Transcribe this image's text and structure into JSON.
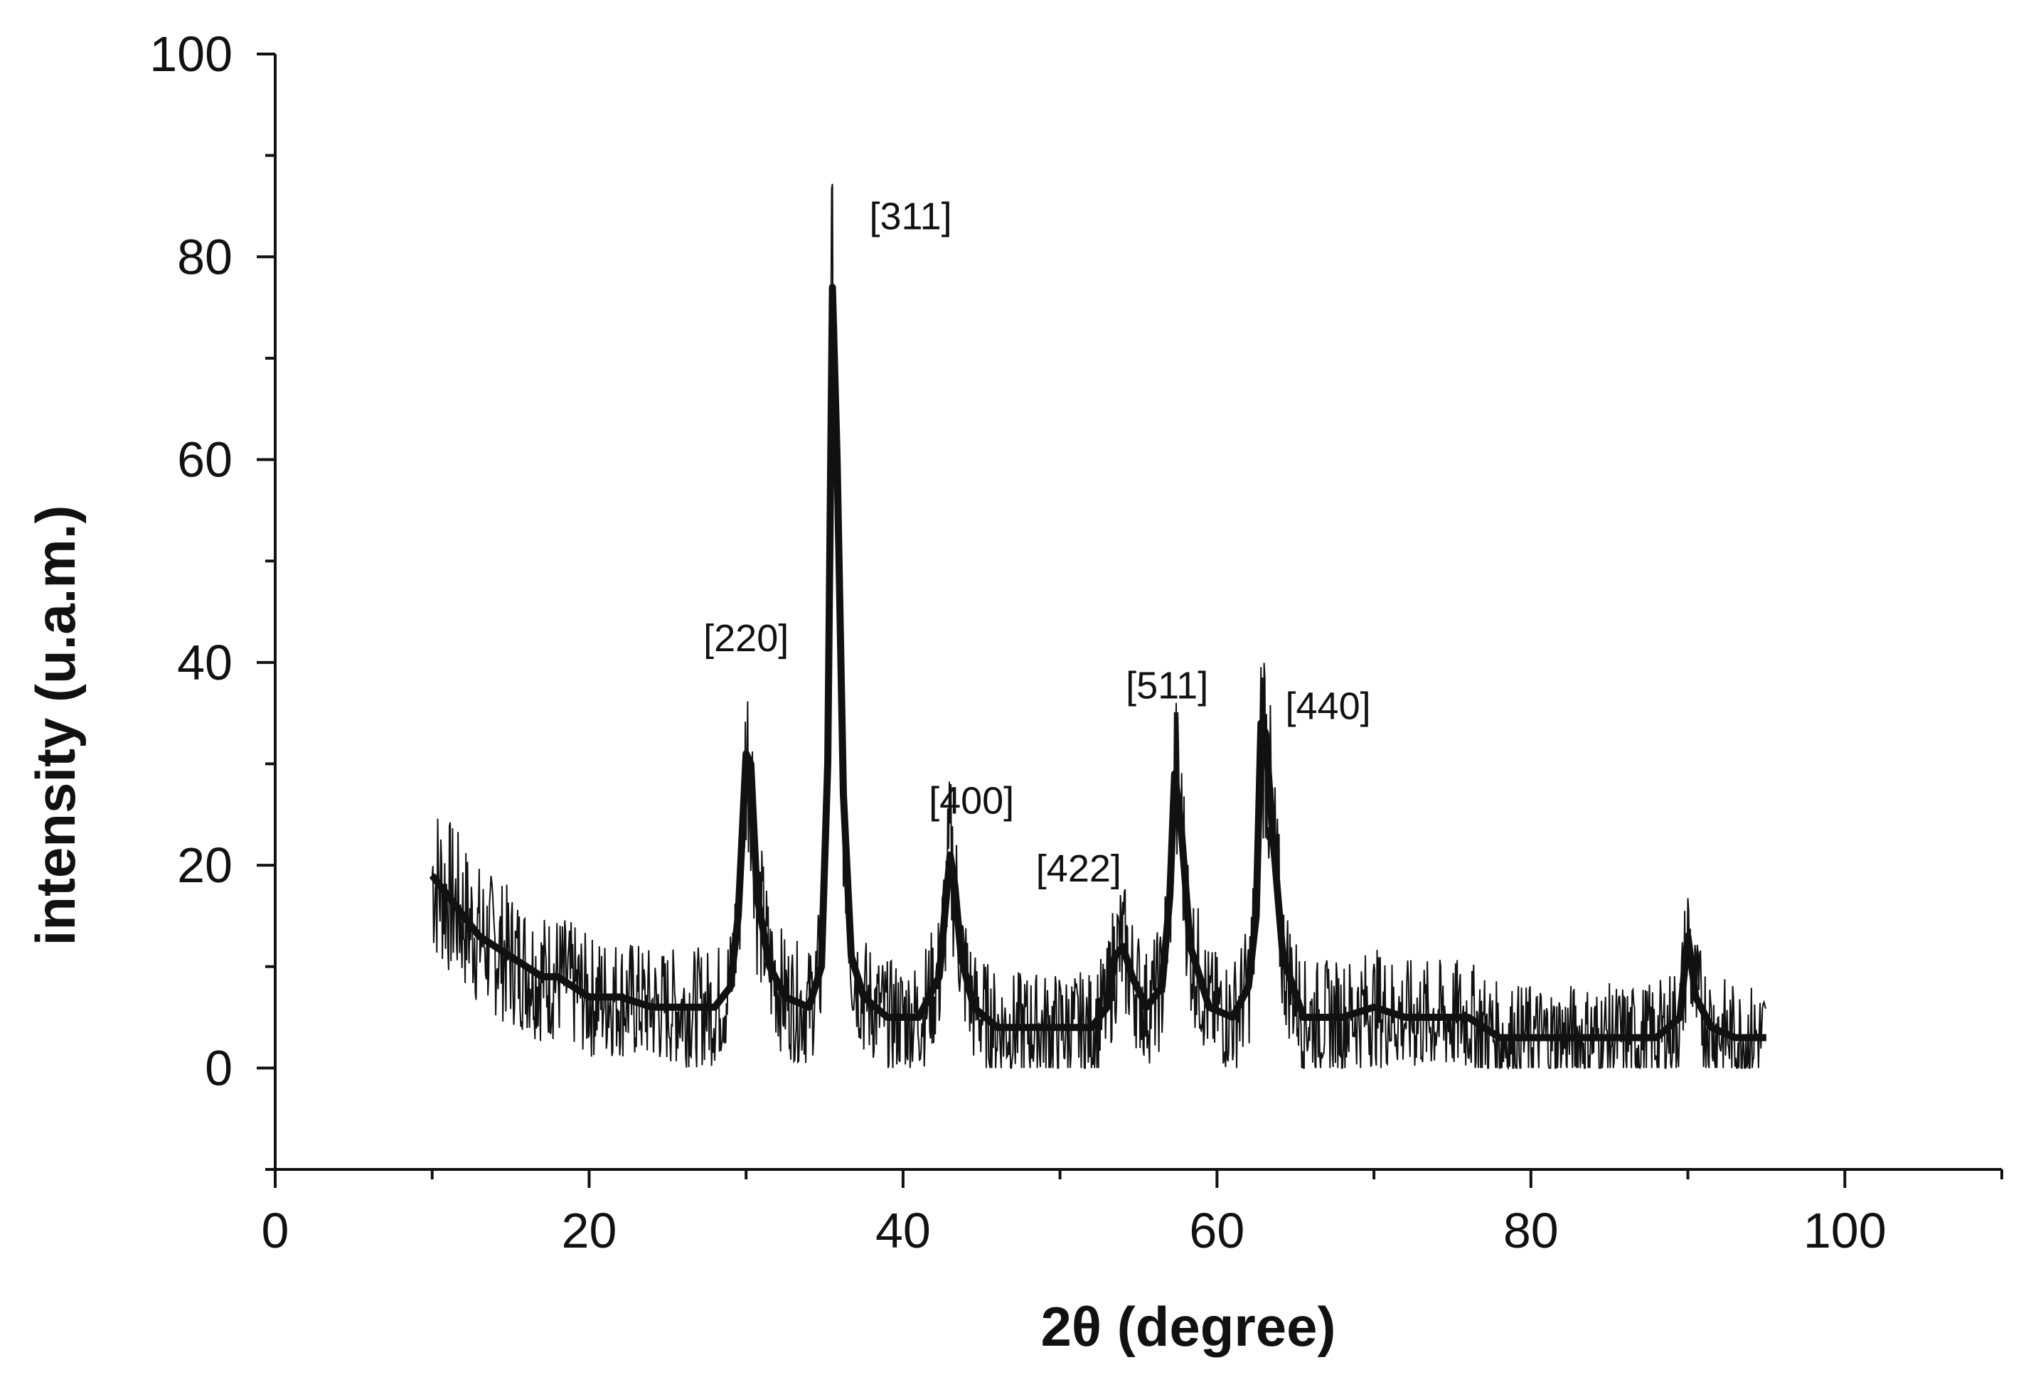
{
  "chart_data": {
    "type": "line",
    "title": "",
    "xlabel": "2θ (degree)",
    "ylabel": "intensity (u.a.m.)",
    "xlim": [
      0,
      110
    ],
    "ylim": [
      -10,
      100
    ],
    "x_ticks": [
      0,
      20,
      40,
      60,
      80,
      100
    ],
    "y_ticks": [
      0,
      20,
      40,
      60,
      80,
      100
    ],
    "x_tick_labels": [
      "0",
      "20",
      "40",
      "60",
      "80",
      "100"
    ],
    "y_tick_labels": [
      "0",
      "20",
      "40",
      "60",
      "80",
      "100"
    ],
    "grid": false,
    "legend": "none",
    "line_color": "#111111",
    "series": [
      {
        "x": [
          10,
          11,
          12,
          13,
          14,
          15,
          16,
          17,
          18,
          19,
          20,
          22,
          24,
          26,
          28,
          29,
          29.5,
          30,
          30.3,
          30.7,
          31.5,
          32.5,
          34,
          34.8,
          35.2,
          35.5,
          35.8,
          36.2,
          36.7,
          37.5,
          39,
          41,
          42.3,
          43,
          43.3,
          43.7,
          44.5,
          46,
          48,
          50,
          52,
          53,
          53.5,
          54,
          54.6,
          55.5,
          56.5,
          57,
          57.3,
          57.7,
          58.3,
          59.5,
          61,
          62,
          62.5,
          62.8,
          63.1,
          63.5,
          64.2,
          65.5,
          68,
          70,
          72,
          74,
          76,
          78,
          80,
          82,
          84,
          86,
          88,
          89.5,
          90,
          90.5,
          91.5,
          93,
          95
        ],
        "y": [
          19,
          17,
          15,
          13,
          12,
          11,
          10,
          9,
          9,
          8,
          7,
          7,
          6,
          6,
          6,
          8,
          15,
          31,
          30,
          17,
          10,
          7,
          6,
          10,
          30,
          77,
          60,
          27,
          11,
          7,
          5,
          5,
          9,
          21,
          18,
          11,
          6,
          4,
          4,
          4,
          4,
          6,
          11,
          12,
          9,
          6,
          8,
          17,
          29,
          24,
          12,
          6,
          5,
          8,
          15,
          34,
          33,
          24,
          11,
          5,
          5,
          6,
          5,
          5,
          5,
          3,
          3,
          3,
          3,
          3,
          3,
          5,
          13,
          7,
          4,
          3,
          3
        ]
      }
    ],
    "annotations": [
      {
        "text": "[220]",
        "x": 30,
        "y": 39
      },
      {
        "text": "[311]",
        "x": 35.5,
        "y": 82
      },
      {
        "text": "[400]",
        "x": 43,
        "y": 23
      },
      {
        "text": "[422]",
        "x": 53,
        "y": 17
      },
      {
        "text": "[511]",
        "x": 57.5,
        "y": 34
      },
      {
        "text": "[440]",
        "x": 63,
        "y": 33
      }
    ]
  }
}
